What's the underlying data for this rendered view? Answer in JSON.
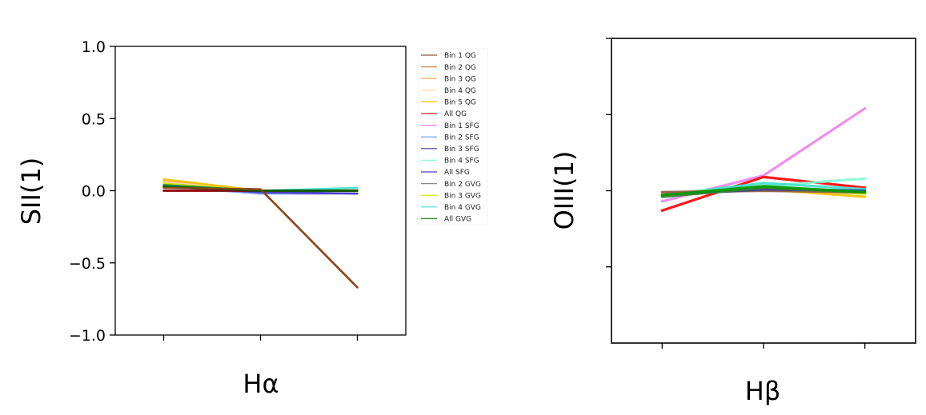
{
  "chart_data": [
    {
      "type": "line",
      "xlabel": "Hα",
      "ylabel": "SII(1)",
      "x": [
        1,
        2,
        3
      ],
      "xlim": [
        0.5,
        3.5
      ],
      "ylim": [
        -1.0,
        1.0
      ],
      "yticks": [
        1.0,
        0.5,
        0.0,
        -0.5,
        -1.0
      ],
      "ytick_labels": [
        "1.0",
        "0.5",
        "0.0",
        "−0.5",
        "−1.0"
      ],
      "grid": false,
      "legend_position": "right, outside",
      "series": [
        {
          "name": "Bin 1 QG",
          "color": "#8c564b",
          "values": [
            0.03,
            0.01,
            -0.67
          ]
        },
        {
          "name": "Bin 2 QG",
          "color": "#c58a5e",
          "values": [
            0.04,
            0.0,
            0.0
          ]
        },
        {
          "name": "Bin 3 QG",
          "color": "#ff9f40",
          "values": [
            0.07,
            0.0,
            0.0
          ]
        },
        {
          "name": "Bin 4 QG",
          "color": "#ffd8a8",
          "values": [
            0.06,
            0.0,
            0.01
          ]
        },
        {
          "name": "Bin 5 QG",
          "color": "#f2c200",
          "values": [
            0.08,
            0.0,
            0.0
          ]
        },
        {
          "name": "All QG",
          "color": "#d62728",
          "values": [
            0.0,
            0.0,
            0.0
          ]
        },
        {
          "name": "Bin 1 SFG",
          "color": "#ee82ee",
          "values": [
            0.03,
            -0.02,
            -0.02
          ]
        },
        {
          "name": "Bin 2 SFG",
          "color": "#6495ed",
          "values": [
            0.03,
            -0.02,
            -0.02
          ]
        },
        {
          "name": "Bin 3 SFG",
          "color": "#3b3b8f",
          "values": [
            0.03,
            -0.01,
            -0.02
          ]
        },
        {
          "name": "Bin 4 SFG",
          "color": "#7fffd4",
          "values": [
            0.04,
            0.0,
            0.02
          ]
        },
        {
          "name": "All SFG",
          "color": "#4b3fc8",
          "values": [
            0.03,
            -0.01,
            -0.02
          ]
        },
        {
          "name": "Bin 2 GVG",
          "color": "#8a8a8a",
          "values": [
            0.04,
            0.0,
            0.0
          ]
        },
        {
          "name": "Bin 3 GVG",
          "color": "#c8e000",
          "values": [
            0.05,
            0.0,
            0.0
          ]
        },
        {
          "name": "Bin 4 GVG",
          "color": "#40e0d0",
          "values": [
            0.04,
            0.0,
            0.02
          ]
        },
        {
          "name": "All GVG",
          "color": "#2e8b2e",
          "values": [
            0.04,
            0.0,
            0.0
          ]
        }
      ],
      "overlay_series": [
        {
          "color": "#8b0000",
          "values": [
            0.0,
            0.0,
            0.0
          ]
        },
        {
          "color": "#006400",
          "values": [
            0.03,
            0.0,
            0.0
          ]
        },
        {
          "color": "#8b4513",
          "values": [
            0.02,
            0.01,
            -0.67
          ]
        }
      ]
    },
    {
      "type": "line",
      "xlabel": "Hβ",
      "ylabel": "OIII(1)",
      "x": [
        1,
        2,
        3
      ],
      "xlim": [
        0.5,
        3.5
      ],
      "ylim": [
        -1.0,
        1.0
      ],
      "yticks": [
        1.0,
        0.5,
        0.0,
        -0.5
      ],
      "ytick_labels": [],
      "grid": false,
      "series": [
        {
          "color": "#ee82ee",
          "values": [
            -0.07,
            0.1,
            0.54
          ]
        },
        {
          "color": "#ff0000",
          "values": [
            -0.13,
            0.09,
            0.02
          ]
        },
        {
          "color": "#7fffd4",
          "values": [
            -0.03,
            0.03,
            0.08
          ]
        },
        {
          "color": "#40e0d0",
          "values": [
            -0.03,
            0.05,
            0.01
          ]
        },
        {
          "color": "#f2c200",
          "values": [
            -0.02,
            0.01,
            -0.04
          ]
        },
        {
          "color": "#c8e000",
          "values": [
            -0.02,
            0.02,
            -0.02
          ]
        },
        {
          "color": "#8c564b",
          "values": [
            -0.01,
            0.0,
            -0.01
          ]
        },
        {
          "color": "#3b3b8f",
          "values": [
            -0.03,
            0.01,
            0.0
          ]
        },
        {
          "color": "#2e8b2e",
          "values": [
            -0.04,
            0.02,
            -0.01
          ]
        },
        {
          "color": "#009900",
          "values": [
            -0.03,
            0.03,
            -0.01
          ]
        }
      ]
    }
  ]
}
